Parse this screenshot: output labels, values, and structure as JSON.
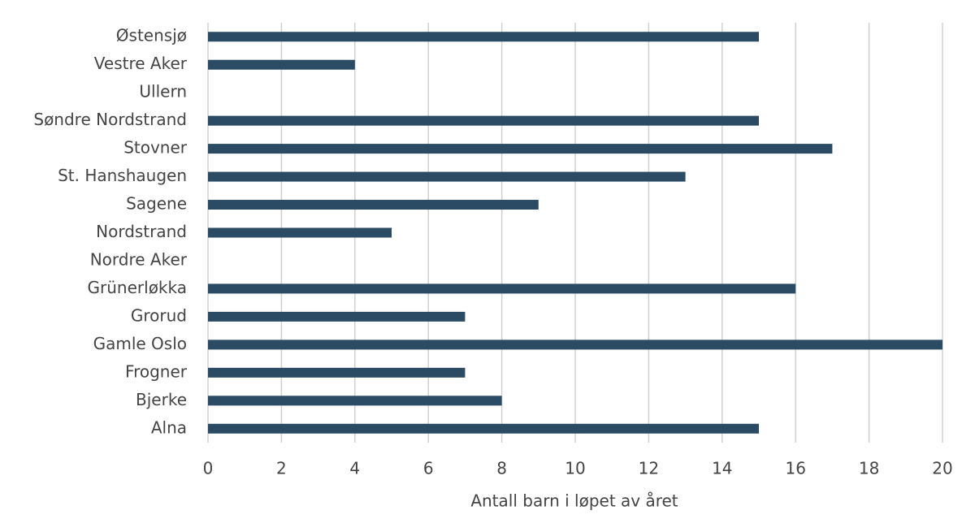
{
  "chart_data": {
    "type": "bar",
    "orientation": "horizontal",
    "categories": [
      "Østensjø",
      "Vestre Aker",
      "Ullern",
      "Søndre Nordstrand",
      "Stovner",
      "St. Hanshaugen",
      "Sagene",
      "Nordstrand",
      "Nordre Aker",
      "Grünerløkka",
      "Grorud",
      "Gamle Oslo",
      "Frogner",
      "Bjerke",
      "Alna"
    ],
    "values": [
      15,
      4,
      0,
      15,
      17,
      13,
      9,
      5,
      0,
      16,
      7,
      20,
      7,
      8,
      15
    ],
    "color": "#2b4a63",
    "xlabel": "Antall barn i løpet av året",
    "xlim": [
      0,
      20
    ],
    "xticks": [
      0,
      2,
      4,
      6,
      8,
      10,
      12,
      14,
      16,
      18,
      20
    ],
    "grid": true
  }
}
